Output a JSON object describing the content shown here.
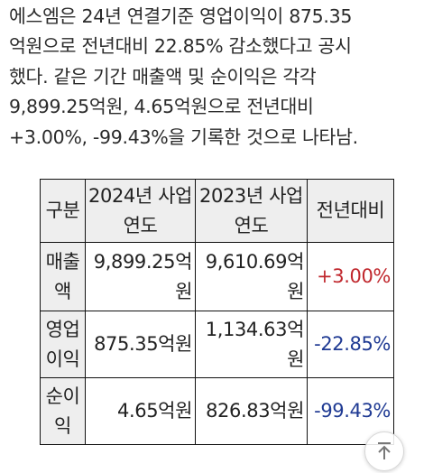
{
  "article": {
    "lines": [
      "에스엠은 24년 연결기준 영업이익이 875.35",
      "억원으로 전년대비 22.85% 감소했다고 공시",
      "했다. 같은 기간 매출액 및 순이익은 각각",
      "9,899.25억원, 4.65억원으로 전년대비",
      "+3.00%, -99.43%을 기록한 것으로 나타남."
    ]
  },
  "table": {
    "headers": {
      "col0": "구분",
      "col1": [
        "2024년 사업",
        "연도"
      ],
      "col2": [
        "2023년 사업",
        "연도"
      ],
      "col3": "전년대비"
    },
    "rows": [
      {
        "label": [
          "매출",
          "액"
        ],
        "y2024": [
          "9,899.25억",
          "원"
        ],
        "y2023": [
          "9,610.69억",
          "원"
        ],
        "change": "+3.00%",
        "change_sign": "positive"
      },
      {
        "label": [
          "영업",
          "이익"
        ],
        "y2024": [
          "875.35억원"
        ],
        "y2023": [
          "1,134.63억",
          "원"
        ],
        "change": "-22.85%",
        "change_sign": "negative"
      },
      {
        "label": [
          "순이",
          "익"
        ],
        "y2024": [
          "4.65억원"
        ],
        "y2023": [
          "826.83억원"
        ],
        "change": "-99.43%",
        "change_sign": "negative"
      }
    ]
  },
  "colors": {
    "positive": "#c0272d",
    "negative": "#1f3a93",
    "header_bg": "#eeeeee"
  },
  "controls": {
    "scroll_top_icon": "arrow-up-to-top-icon"
  }
}
